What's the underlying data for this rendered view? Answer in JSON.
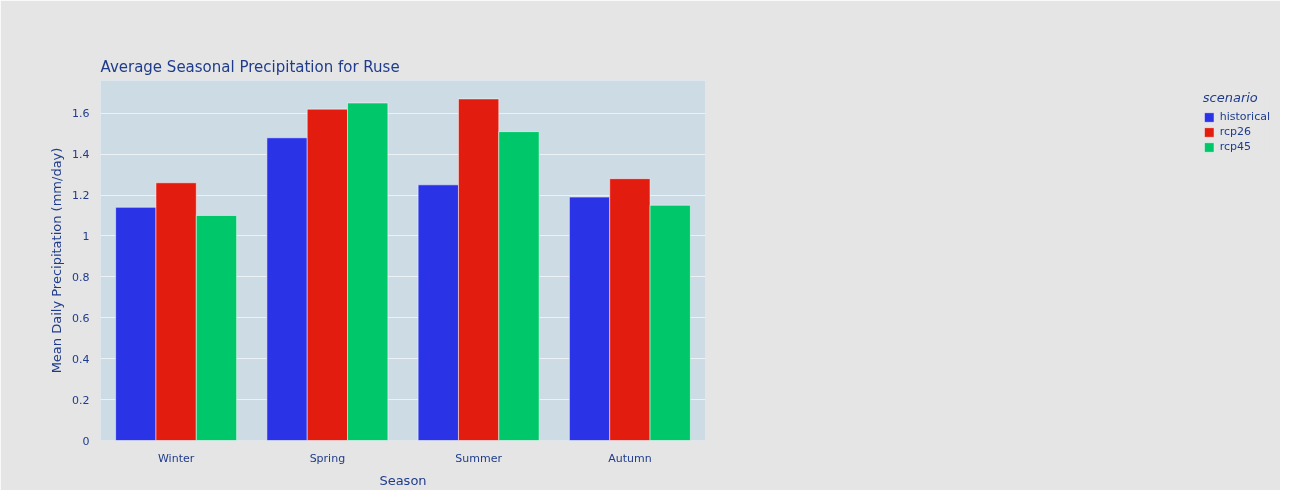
{
  "chart_data": {
    "type": "bar",
    "title": "Average Seasonal Precipitation for Ruse",
    "xlabel": "Season",
    "ylabel": "Mean Daily Precipitation (mm/day)",
    "legend_title": "scenario",
    "categories": [
      "Winter",
      "Spring",
      "Summer",
      "Autumn"
    ],
    "series": [
      {
        "name": "historical",
        "color": "#2a34e6",
        "values": [
          1.14,
          1.48,
          1.25,
          1.19
        ]
      },
      {
        "name": "rcp26",
        "color": "#e31c10",
        "values": [
          1.26,
          1.62,
          1.67,
          1.28
        ]
      },
      {
        "name": "rcp45",
        "color": "#00c86a",
        "values": [
          1.1,
          1.65,
          1.51,
          1.15
        ]
      }
    ],
    "ylim": [
      0,
      1.76
    ],
    "yticks": [
      0,
      0.2,
      0.4,
      0.6,
      0.8,
      1,
      1.2,
      1.4,
      1.6
    ],
    "grid": "y",
    "legend": "top right"
  }
}
